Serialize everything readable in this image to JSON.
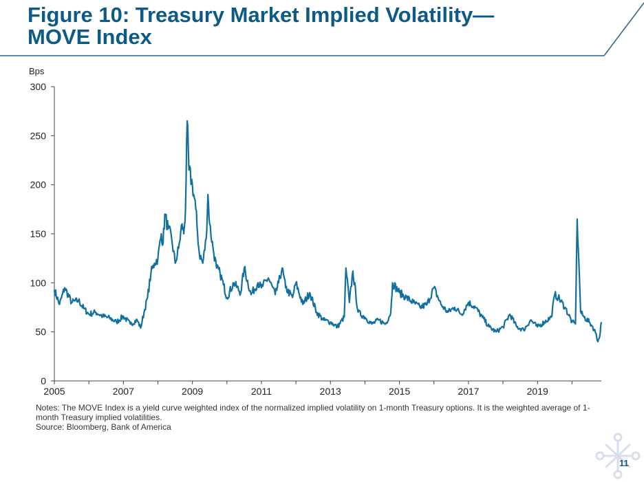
{
  "slide": {
    "title_line1": "Figure 10: Treasury Market Implied Volatility—",
    "title_line2": "MOVE Index",
    "notes": "Notes: The MOVE Index is a yield curve weighted index of the normalized implied volatility on 1-month Treasury options. It is the weighted average of 1-month Treasury implied volatilities.",
    "source": "Source: Bloomberg, Bank of America",
    "page_number": "11"
  },
  "colors": {
    "title": "#0d5a85",
    "series": "#1170a0",
    "axis": "#444444",
    "rule": "#2a5f8a"
  },
  "chart_data": {
    "type": "line",
    "title": "",
    "ylabel": "Bps",
    "xlabel": "",
    "xlim": [
      2005,
      2020.85
    ],
    "ylim": [
      0,
      300
    ],
    "yticks": [
      0,
      50,
      100,
      150,
      200,
      250,
      300
    ],
    "xticks": [
      2005,
      2007,
      2009,
      2011,
      2013,
      2015,
      2017,
      2019
    ],
    "grid": false,
    "series": [
      {
        "name": "",
        "x": [
          2005.0,
          2005.15,
          2005.3,
          2005.5,
          2005.7,
          2005.85,
          2006.0,
          2006.2,
          2006.4,
          2006.6,
          2006.8,
          2007.0,
          2007.2,
          2007.4,
          2007.5,
          2007.6,
          2007.7,
          2007.8,
          2007.9,
          2008.0,
          2008.1,
          2008.15,
          2008.2,
          2008.3,
          2008.4,
          2008.5,
          2008.6,
          2008.7,
          2008.75,
          2008.8,
          2008.85,
          2008.9,
          2009.0,
          2009.1,
          2009.15,
          2009.2,
          2009.3,
          2009.4,
          2009.45,
          2009.5,
          2009.6,
          2009.7,
          2009.8,
          2009.9,
          2010.0,
          2010.2,
          2010.4,
          2010.5,
          2010.7,
          2010.9,
          2011.0,
          2011.2,
          2011.4,
          2011.5,
          2011.6,
          2011.7,
          2011.9,
          2012.0,
          2012.2,
          2012.4,
          2012.6,
          2012.8,
          2013.0,
          2013.2,
          2013.4,
          2013.45,
          2013.55,
          2013.65,
          2013.8,
          2014.0,
          2014.2,
          2014.4,
          2014.6,
          2014.75,
          2014.8,
          2015.0,
          2015.2,
          2015.4,
          2015.6,
          2015.8,
          2016.0,
          2016.2,
          2016.4,
          2016.6,
          2016.8,
          2017.0,
          2017.2,
          2017.4,
          2017.6,
          2017.8,
          2018.0,
          2018.2,
          2018.4,
          2018.6,
          2018.8,
          2019.0,
          2019.2,
          2019.4,
          2019.5,
          2019.6,
          2019.8,
          2020.0,
          2020.1,
          2020.15,
          2020.2,
          2020.25,
          2020.35,
          2020.5,
          2020.6,
          2020.7,
          2020.75,
          2020.8,
          2020.85
        ],
        "values": [
          93,
          78,
          95,
          80,
          82,
          74,
          68,
          70,
          66,
          64,
          60,
          66,
          58,
          62,
          54,
          70,
          85,
          110,
          120,
          125,
          150,
          140,
          170,
          155,
          145,
          120,
          135,
          160,
          150,
          175,
          265,
          215,
          200,
          175,
          150,
          130,
          120,
          145,
          190,
          160,
          135,
          115,
          110,
          98,
          85,
          100,
          90,
          115,
          88,
          100,
          95,
          105,
          88,
          100,
          115,
          95,
          85,
          100,
          78,
          90,
          70,
          62,
          60,
          55,
          65,
          115,
          80,
          112,
          70,
          65,
          58,
          62,
          58,
          70,
          100,
          90,
          85,
          80,
          75,
          78,
          95,
          78,
          70,
          75,
          68,
          80,
          75,
          65,
          55,
          50,
          55,
          68,
          55,
          52,
          62,
          55,
          60,
          65,
          88,
          85,
          75,
          60,
          58,
          165,
          120,
          70,
          65,
          60,
          55,
          48,
          40,
          45,
          60
        ]
      }
    ]
  }
}
